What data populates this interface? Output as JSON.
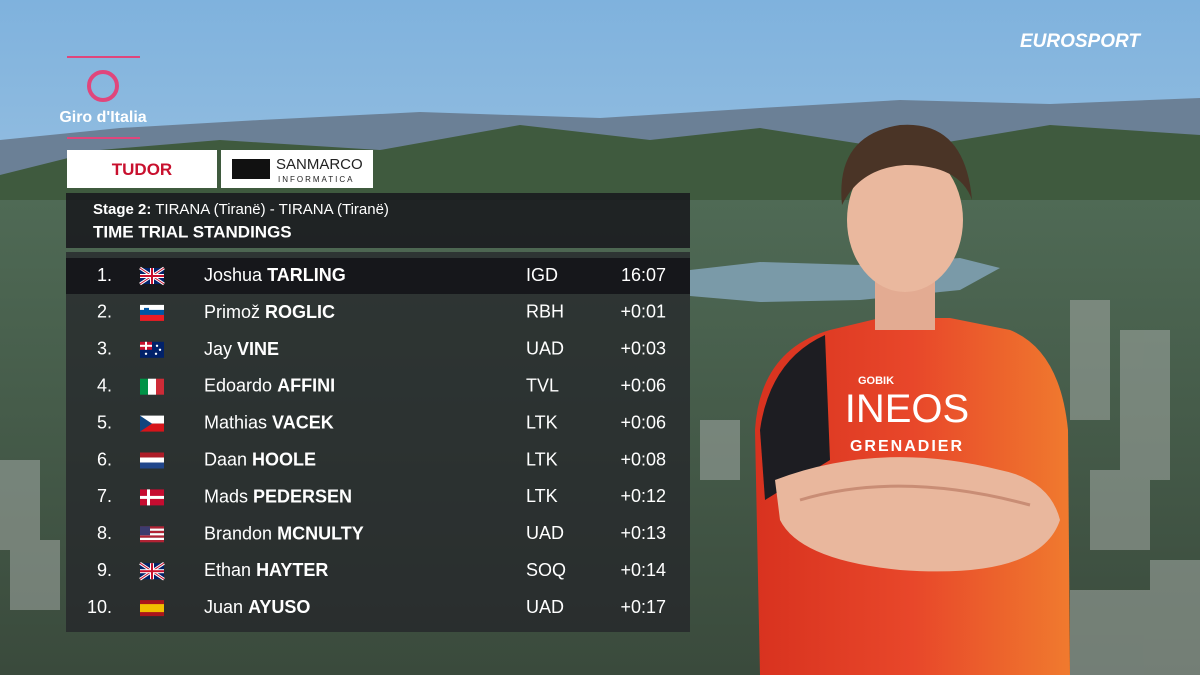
{
  "broadcaster": "EUROSPORT",
  "logos": {
    "race": "Giro d'Italia",
    "sponsor_1": "TUDOR",
    "sponsor_2": {
      "name": "SANMARCO",
      "subtitle": "INFORMATICA"
    }
  },
  "rider_jersey": {
    "brand": "GOBIK",
    "team": "INEOS",
    "team_subtitle": "GRENADIER"
  },
  "standings": {
    "stage_label": "Stage 2:",
    "route": "TIRANA (Tiranë) - TIRANA (Tiranë)",
    "title": "TIME TRIAL STANDINGS",
    "rows": [
      {
        "position": "1.",
        "first_name": "Joshua",
        "last_name": "TARLING",
        "team": "IGD",
        "time": "16:07"
      },
      {
        "position": "2.",
        "first_name": "Primož",
        "last_name": "ROGLIC",
        "team": "RBH",
        "time": "+0:01"
      },
      {
        "position": "3.",
        "first_name": "Jay",
        "last_name": "VINE",
        "team": "UAD",
        "time": "+0:03"
      },
      {
        "position": "4.",
        "first_name": "Edoardo",
        "last_name": "AFFINI",
        "team": "TVL",
        "time": "+0:06"
      },
      {
        "position": "5.",
        "first_name": "Mathias",
        "last_name": "VACEK",
        "team": "LTK",
        "time": "+0:06"
      },
      {
        "position": "6.",
        "first_name": "Daan",
        "last_name": "HOOLE",
        "team": "LTK",
        "time": "+0:08"
      },
      {
        "position": "7.",
        "first_name": "Mads",
        "last_name": "PEDERSEN",
        "team": "LTK",
        "time": "+0:12"
      },
      {
        "position": "8.",
        "first_name": "Brandon",
        "last_name": "MCNULTY",
        "team": "UAD",
        "time": "+0:13"
      },
      {
        "position": "9.",
        "first_name": "Ethan",
        "last_name": "HAYTER",
        "team": "SOQ",
        "time": "+0:14"
      },
      {
        "position": "10.",
        "first_name": "Juan",
        "last_name": "AYUSO",
        "team": "UAD",
        "time": "+0:17"
      }
    ]
  }
}
